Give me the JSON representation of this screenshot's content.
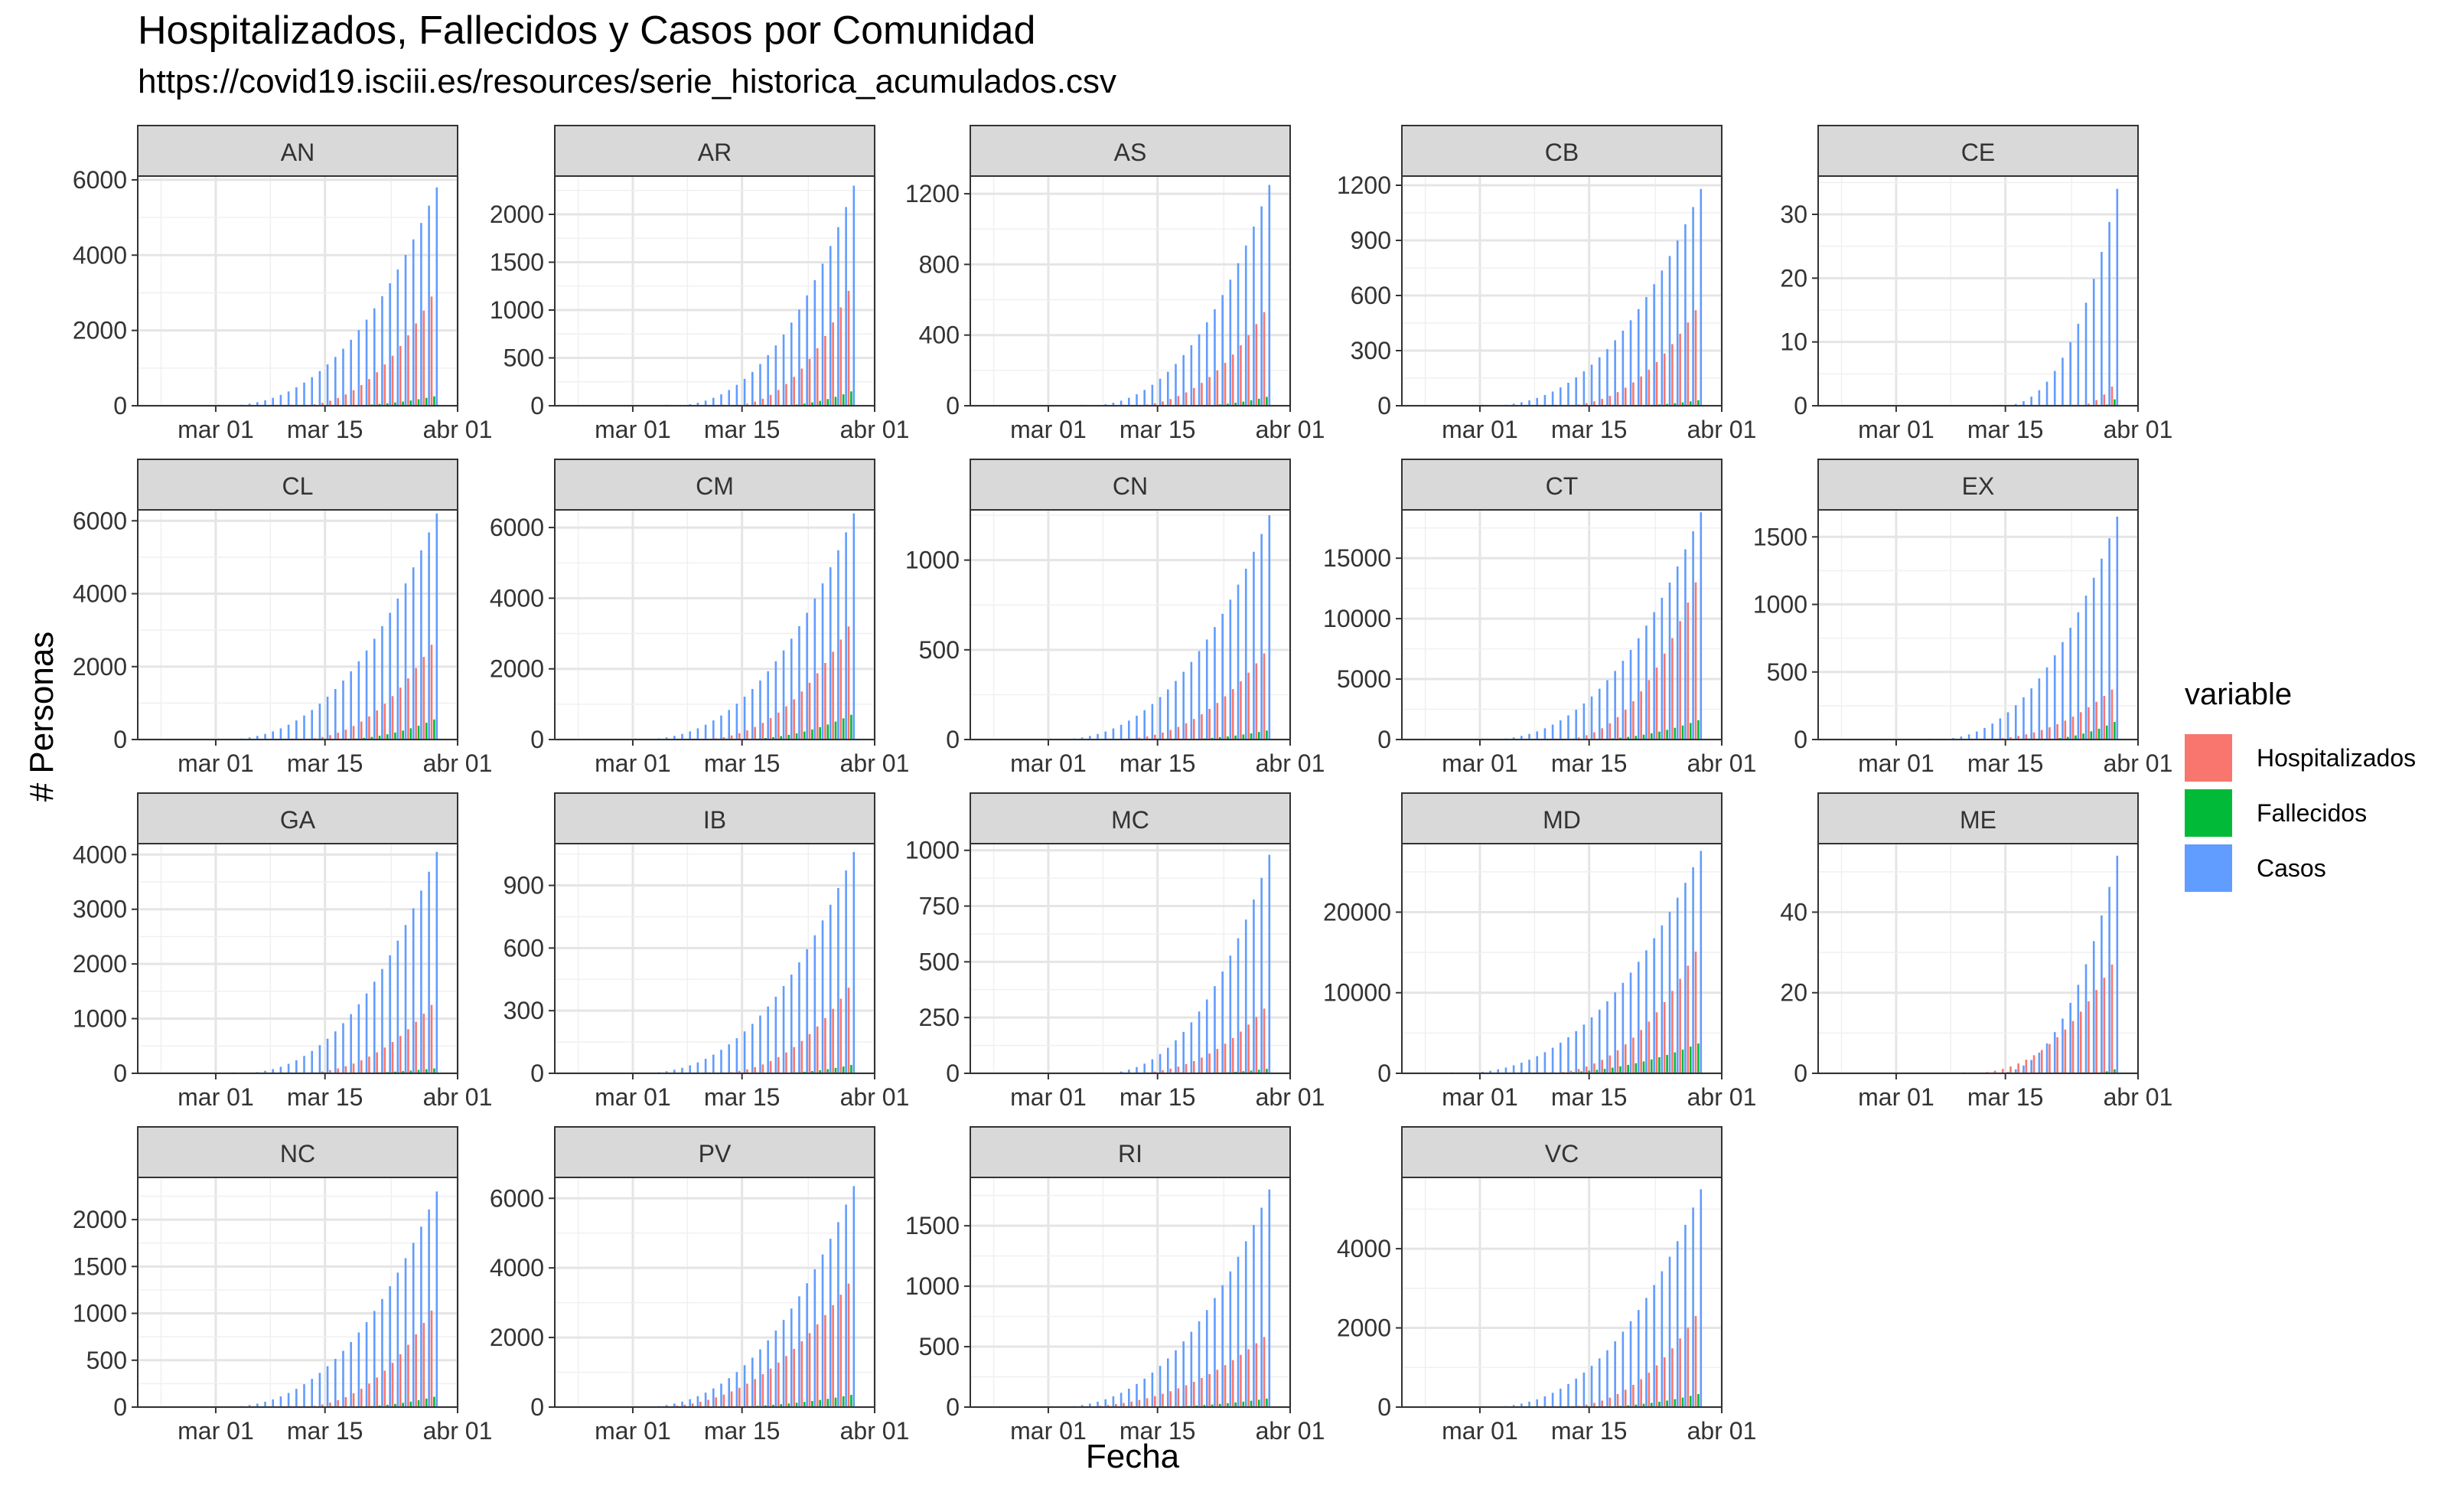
{
  "title": "Hospitalizados, Fallecidos y Casos por Comunidad",
  "subtitle": "https://covid19.isciii.es/resources/serie_historica_acumulados.csv",
  "chart_data": {
    "type": "bar",
    "title": "Hospitalizados, Fallecidos y Casos por Comunidad",
    "subtitle": "https://covid19.isciii.es/resources/serie_historica_acumulados.csv",
    "xlabel": "Fecha",
    "ylabel": "# Personas",
    "x_axis": {
      "start": "2020-02-20",
      "end": "2020-04-01",
      "ticks": [
        "mar 01",
        "mar 15",
        "abr 01"
      ],
      "tick_dates": [
        "2020-03-01",
        "2020-03-15",
        "2020-04-01"
      ]
    },
    "last_date": "2020-03-29",
    "legend": {
      "title": "variable",
      "position": "right",
      "entries": [
        "Hospitalizados",
        "Fallecidos",
        "Casos"
      ]
    },
    "colors": {
      "Hospitalizados": "#F8766D",
      "Fallecidos": "#00BA38",
      "Casos": "#619CFF"
    },
    "grid": true,
    "facets": [
      {
        "name": "AN",
        "ylim": [
          0,
          6100
        ],
        "yticks": [
          0,
          2000,
          4000,
          6000
        ],
        "Casos_start": "2020-03-01",
        "Casos_end": 5800,
        "Hospitalizados_start": "2020-03-11",
        "Hospitalizados_end": 2900,
        "Fallecidos_start": "2020-03-15",
        "Fallecidos_end": 250
      },
      {
        "name": "AR",
        "ylim": [
          0,
          2400
        ],
        "yticks": [
          0,
          500,
          1000,
          1500,
          2000
        ],
        "Casos_start": "2020-03-05",
        "Casos_end": 2300,
        "Hospitalizados_start": "2020-03-13",
        "Hospitalizados_end": 1200,
        "Fallecidos_start": "2020-03-18",
        "Fallecidos_end": 150
      },
      {
        "name": "AS",
        "ylim": [
          0,
          1300
        ],
        "yticks": [
          0,
          400,
          800,
          1200
        ],
        "Casos_start": "2020-03-05",
        "Casos_end": 1250,
        "Hospitalizados_start": "2020-03-11",
        "Hospitalizados_end": 530,
        "Fallecidos_start": "2020-03-18",
        "Fallecidos_end": 50
      },
      {
        "name": "CB",
        "ylim": [
          0,
          1250
        ],
        "yticks": [
          0,
          300,
          600,
          900,
          1200
        ],
        "Casos_start": "2020-03-01",
        "Casos_end": 1180,
        "Hospitalizados_start": "2020-03-11",
        "Hospitalizados_end": 520,
        "Fallecidos_start": "2020-03-18",
        "Fallecidos_end": 30
      },
      {
        "name": "CE",
        "ylim": [
          0,
          36
        ],
        "yticks": [
          0,
          10,
          20,
          30
        ],
        "Casos_start": "2020-03-14",
        "Casos_end": 34,
        "Hospitalizados_start": "2020-03-24",
        "Hospitalizados_end": 3,
        "Fallecidos_start": "2020-03-27",
        "Fallecidos_end": 1
      },
      {
        "name": "CL",
        "ylim": [
          0,
          6300
        ],
        "yticks": [
          0,
          2000,
          4000,
          6000
        ],
        "Casos_start": "2020-03-01",
        "Casos_end": 6200,
        "Hospitalizados_start": "2020-03-11",
        "Hospitalizados_end": 2600,
        "Fallecidos_start": "2020-03-15",
        "Fallecidos_end": 550
      },
      {
        "name": "CM",
        "ylim": [
          0,
          6500
        ],
        "yticks": [
          0,
          2000,
          4000,
          6000
        ],
        "Casos_start": "2020-03-01",
        "Casos_end": 6400,
        "Hospitalizados_start": "2020-03-09",
        "Hospitalizados_end": 3200,
        "Fallecidos_start": "2020-03-13",
        "Fallecidos_end": 700
      },
      {
        "name": "CN",
        "ylim": [
          0,
          1280
        ],
        "yticks": [
          0,
          500,
          1000
        ],
        "Casos_start": "2020-03-01",
        "Casos_end": 1250,
        "Hospitalizados_start": "2020-03-09",
        "Hospitalizados_end": 480,
        "Fallecidos_start": "2020-03-15",
        "Fallecidos_end": 50
      },
      {
        "name": "CT",
        "ylim": [
          0,
          19000
        ],
        "yticks": [
          0,
          5000,
          10000,
          15000
        ],
        "Casos_start": "2020-03-01",
        "Casos_end": 18800,
        "Hospitalizados_start": "2020-03-11",
        "Hospitalizados_end": 13000,
        "Fallecidos_start": "2020-03-13",
        "Fallecidos_end": 1600
      },
      {
        "name": "EX",
        "ylim": [
          0,
          1700
        ],
        "yticks": [
          0,
          500,
          1000,
          1500
        ],
        "Casos_start": "2020-03-05",
        "Casos_end": 1650,
        "Hospitalizados_start": "2020-03-11",
        "Hospitalizados_end": 370,
        "Fallecidos_start": "2020-03-18",
        "Fallecidos_end": 130
      },
      {
        "name": "GA",
        "ylim": [
          0,
          4200
        ],
        "yticks": [
          0,
          1000,
          2000,
          3000,
          4000
        ],
        "Casos_start": "2020-03-03",
        "Casos_end": 4050,
        "Hospitalizados_start": "2020-03-11",
        "Hospitalizados_end": 1250,
        "Fallecidos_start": "2020-03-15",
        "Fallecidos_end": 90
      },
      {
        "name": "IB",
        "ylim": [
          0,
          1100
        ],
        "yticks": [
          0,
          300,
          600,
          900
        ],
        "Casos_start": "2020-03-01",
        "Casos_end": 1060,
        "Hospitalizados_start": "2020-03-11",
        "Hospitalizados_end": 410,
        "Fallecidos_start": "2020-03-17",
        "Fallecidos_end": 40
      },
      {
        "name": "MC",
        "ylim": [
          0,
          1030
        ],
        "yticks": [
          0,
          250,
          500,
          750,
          1000
        ],
        "Casos_start": "2020-03-07",
        "Casos_end": 980,
        "Hospitalizados_start": "2020-03-11",
        "Hospitalizados_end": 290,
        "Fallecidos_start": "2020-03-18",
        "Fallecidos_end": 20
      },
      {
        "name": "MD",
        "ylim": [
          0,
          28500
        ],
        "yticks": [
          0,
          10000,
          20000
        ],
        "Casos_start": "2020-02-26",
        "Casos_end": 27600,
        "Hospitalizados_start": "2020-03-09",
        "Hospitalizados_end": 15100,
        "Fallecidos_start": "2020-03-07",
        "Fallecidos_end": 3700
      },
      {
        "name": "ME",
        "ylim": [
          0,
          57
        ],
        "yticks": [
          0,
          20,
          40
        ],
        "Casos_start": "2020-03-13",
        "Casos_end": 54,
        "Hospitalizados_start": "2020-03-10",
        "Hospitalizados_end": 27,
        "Fallecidos_start": "2020-03-25",
        "Fallecidos_end": 1
      },
      {
        "name": "NC",
        "ylim": [
          0,
          2450
        ],
        "yticks": [
          0,
          500,
          1000,
          1500,
          2000
        ],
        "Casos_start": "2020-03-01",
        "Casos_end": 2300,
        "Hospitalizados_start": "2020-03-11",
        "Hospitalizados_end": 1030,
        "Fallecidos_start": "2020-03-16",
        "Fallecidos_end": 110
      },
      {
        "name": "PV",
        "ylim": [
          0,
          6600
        ],
        "yticks": [
          0,
          2000,
          4000,
          6000
        ],
        "Casos_start": "2020-03-01",
        "Casos_end": 6350,
        "Hospitalizados_start": "2020-03-03",
        "Hospitalizados_end": 3550,
        "Fallecidos_start": "2020-03-09",
        "Fallecidos_end": 350
      },
      {
        "name": "RI",
        "ylim": [
          0,
          1900
        ],
        "yticks": [
          0,
          500,
          1000,
          1500
        ],
        "Casos_start": "2020-03-01",
        "Casos_end": 1800,
        "Hospitalizados_start": "2020-03-03",
        "Hospitalizados_end": 580,
        "Fallecidos_start": "2020-03-11",
        "Fallecidos_end": 70
      },
      {
        "name": "VC",
        "ylim": [
          0,
          5800
        ],
        "yticks": [
          0,
          2000,
          4000
        ],
        "Casos_start": "2020-03-01",
        "Casos_end": 5500,
        "Hospitalizados_start": "2020-03-11",
        "Hospitalizados_end": 2300,
        "Fallecidos_start": "2020-03-13",
        "Fallecidos_end": 330
      }
    ]
  }
}
